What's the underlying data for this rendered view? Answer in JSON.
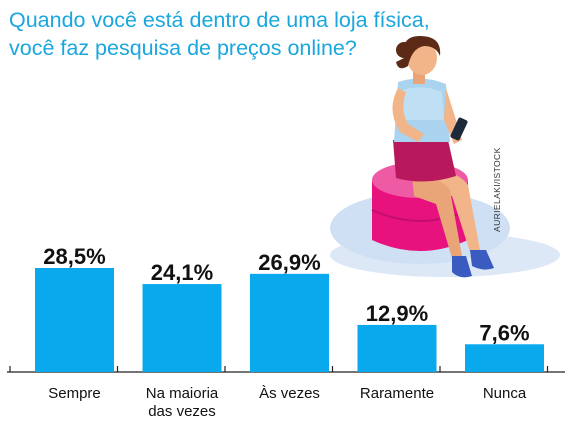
{
  "title_lines": [
    "Quando você está dentro de uma loja física,",
    "você faz pesquisa de preços online?"
  ],
  "credit": "AURIELAKI/ISTOCK",
  "colors": {
    "title": "#1aa7de",
    "bar": "#0aa9ee",
    "text": "#111111"
  },
  "illustration": "woman-sitting-on-pouf-using-phone-illustration",
  "chart_data": {
    "type": "bar",
    "title": "Quando você está dentro de uma loja física, você faz pesquisa de preços online?",
    "categories": [
      [
        "Sempre"
      ],
      [
        "Na maioria",
        "das vezes"
      ],
      [
        "Às vezes"
      ],
      [
        "Raramente"
      ],
      [
        "Nunca"
      ]
    ],
    "values": [
      28.5,
      24.1,
      26.9,
      12.9,
      7.6
    ],
    "value_labels": [
      "28,5%",
      "24,1%",
      "26,9%",
      "12,9%",
      "7,6%"
    ],
    "unit": "%",
    "ylim": [
      0,
      28.5
    ],
    "grid": false,
    "legend": "none"
  }
}
